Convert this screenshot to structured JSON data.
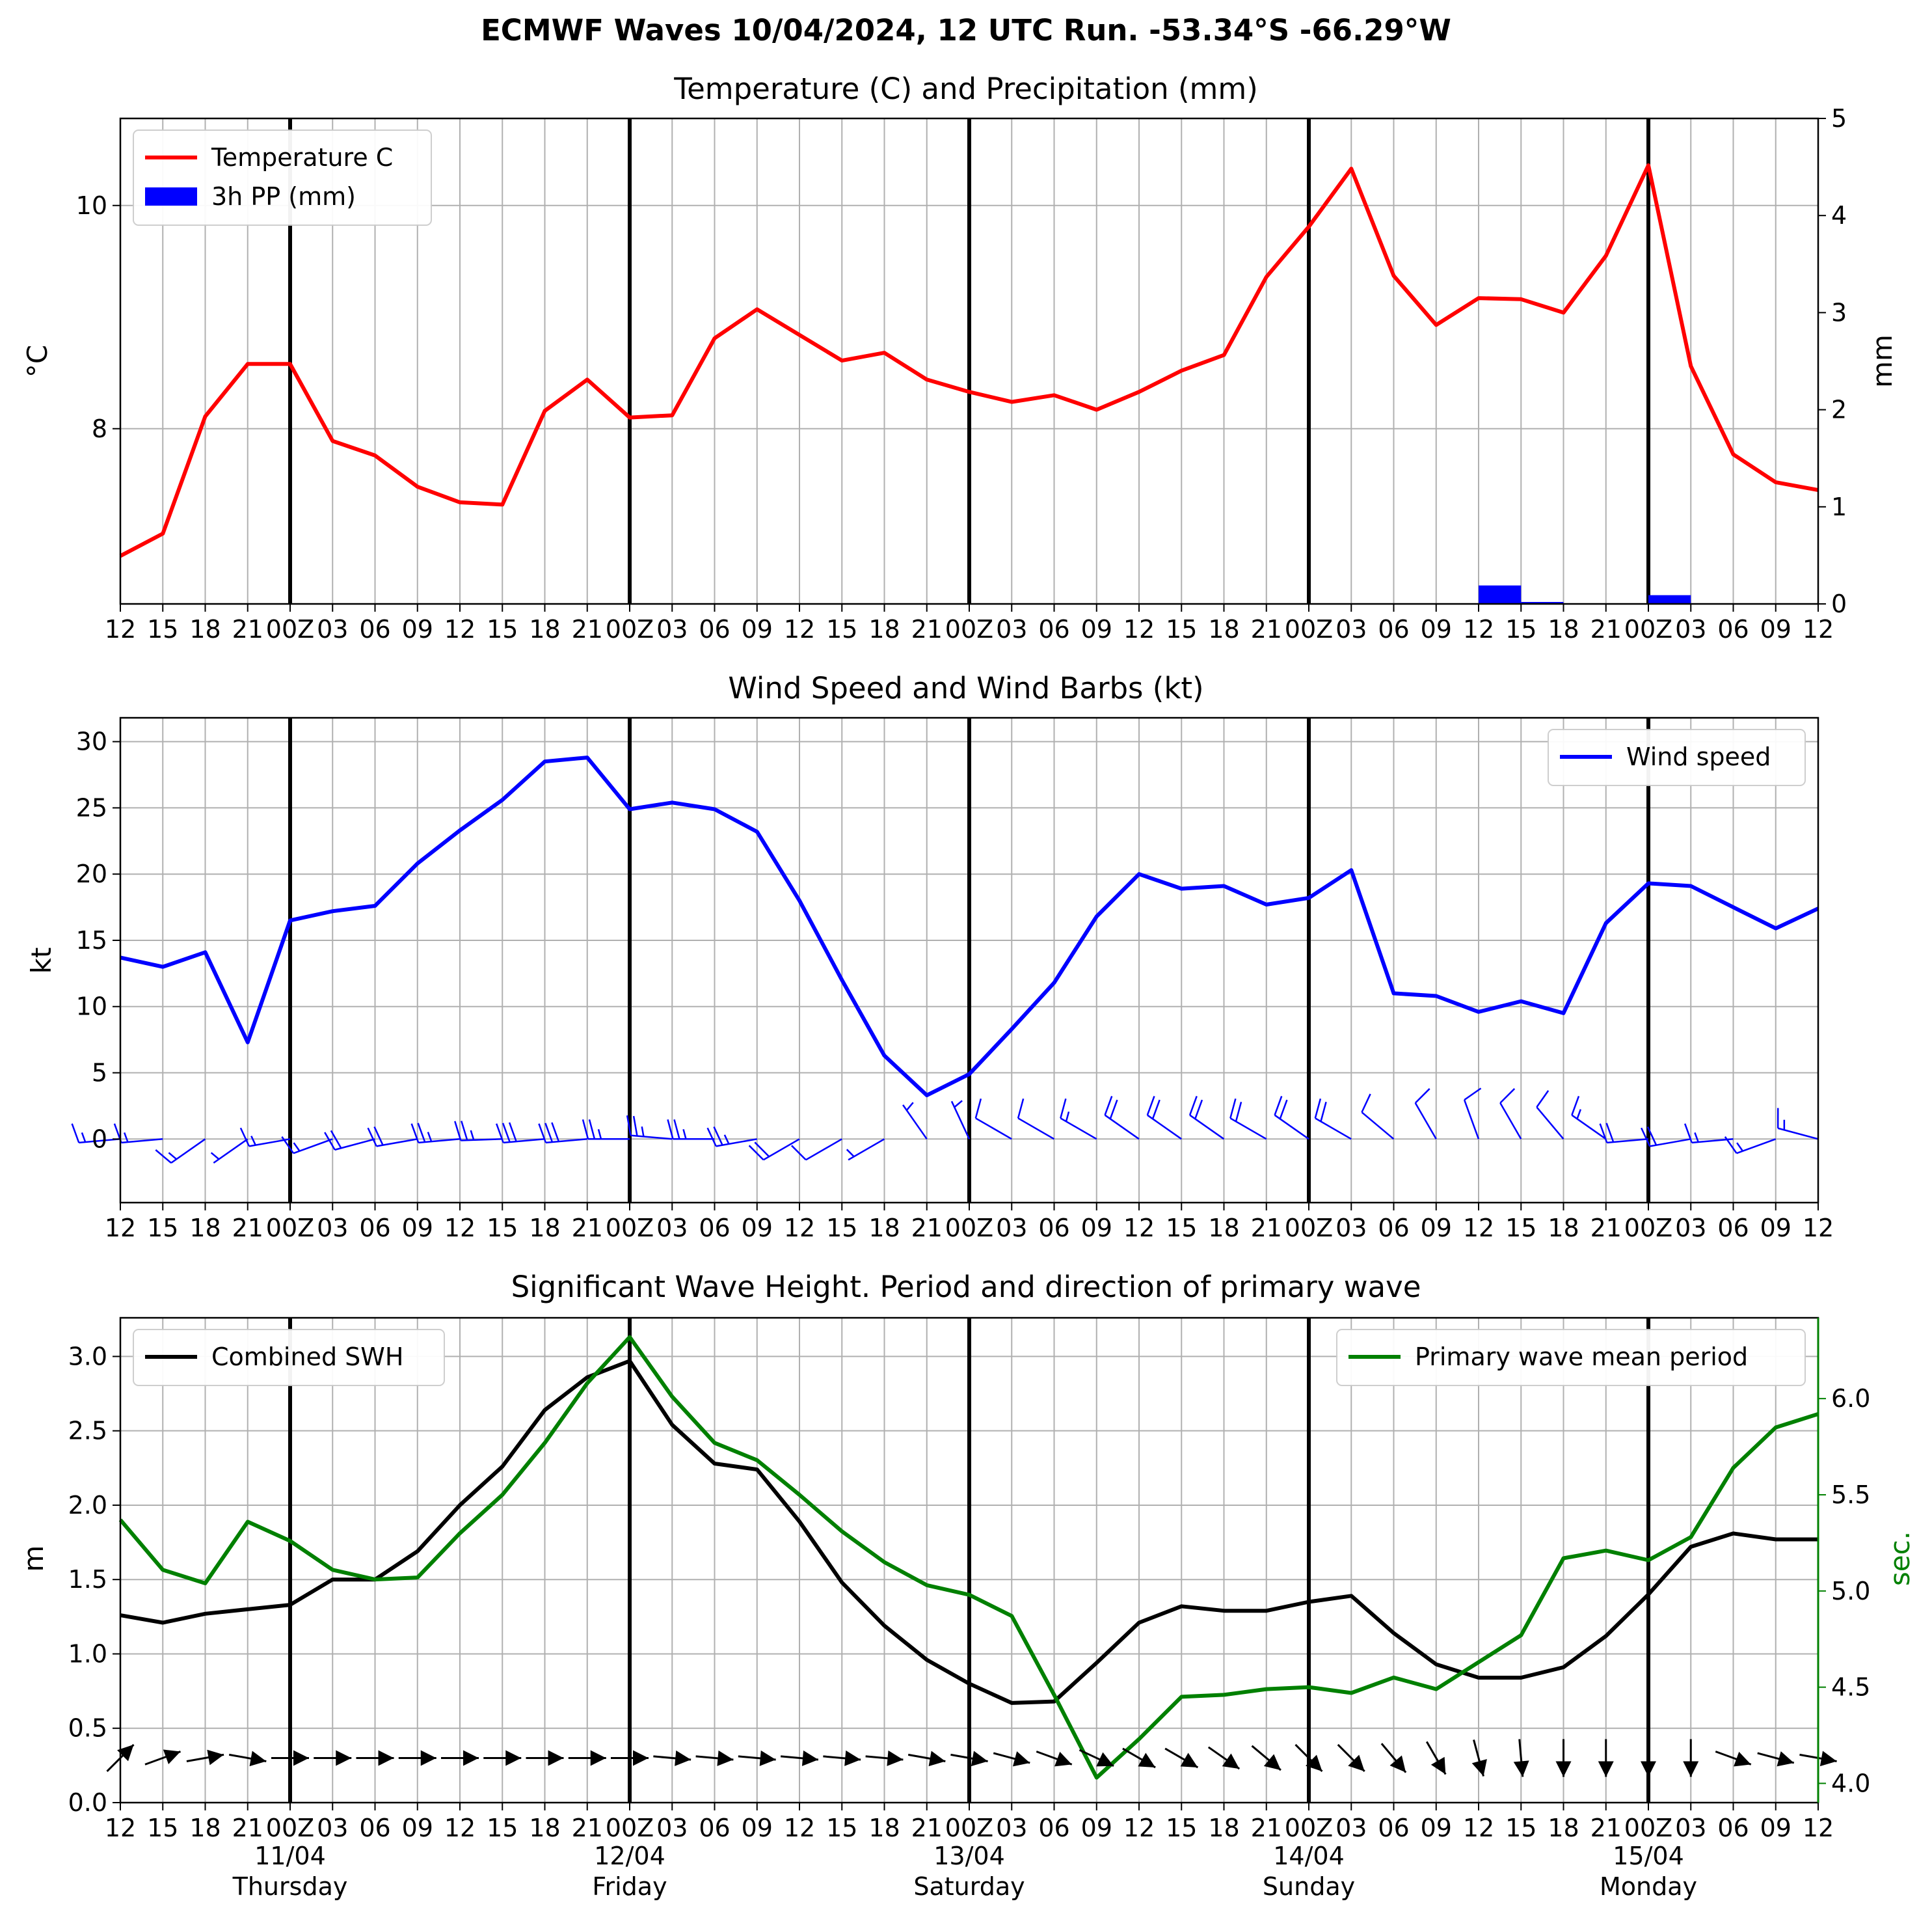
{
  "figure": {
    "suptitle": "ECMWF Waves 10/04/2024, 12 UTC Run. -53.34°S -66.29°W"
  },
  "colors": {
    "temperature": "#ff0000",
    "precip": "#0000ff",
    "wind": "#0000ff",
    "swh": "#000000",
    "period": "#008000",
    "grid": "#b0b0b0"
  },
  "x_axis": {
    "tick_labels": [
      "12",
      "15",
      "18",
      "21",
      "00Z",
      "03",
      "06",
      "09",
      "12",
      "15",
      "18",
      "21",
      "00Z",
      "03",
      "06",
      "09",
      "12",
      "15",
      "18",
      "21",
      "00Z",
      "03",
      "06",
      "09",
      "12",
      "15",
      "18",
      "21",
      "00Z",
      "03",
      "06",
      "09",
      "12",
      "15",
      "18",
      "21",
      "00Z",
      "03",
      "06",
      "09",
      "12"
    ],
    "days": [
      {
        "date": "11/04",
        "weekday": "Thursday"
      },
      {
        "date": "12/04",
        "weekday": "Friday"
      },
      {
        "date": "13/04",
        "weekday": "Saturday"
      },
      {
        "date": "14/04",
        "weekday": "Sunday"
      },
      {
        "date": "15/04",
        "weekday": "Monday"
      }
    ]
  },
  "chart_data": [
    {
      "type": "line",
      "title": "Temperature (C) and Precipitation (mm)",
      "ylabel": "°C",
      "ylabel_right": "mm",
      "ylim": [
        6.43,
        10.78
      ],
      "y_ticks": [
        8,
        10
      ],
      "ylim_right": [
        0,
        5
      ],
      "y_ticks_right": [
        0,
        1,
        2,
        3,
        4,
        5
      ],
      "legend": [
        "Temperature C",
        "3h PP (mm)"
      ],
      "legend_position": "upper left",
      "series": [
        {
          "name": "Temperature C",
          "values": [
            6.86,
            7.06,
            8.11,
            8.58,
            8.58,
            7.89,
            7.76,
            7.48,
            7.34,
            7.32,
            8.16,
            8.44,
            8.1,
            8.12,
            8.81,
            9.07,
            8.84,
            8.61,
            8.68,
            8.44,
            8.33,
            8.24,
            8.3,
            8.17,
            8.33,
            8.52,
            8.66,
            9.36,
            9.81,
            10.33,
            9.37,
            8.93,
            9.17,
            9.16,
            9.04,
            9.55,
            10.36,
            8.56,
            7.77,
            7.52,
            7.45
          ]
        },
        {
          "name": "3h PP (mm)",
          "type": "bar",
          "values": [
            0,
            0,
            0,
            0,
            0,
            0,
            0,
            0,
            0,
            0,
            0,
            0,
            0,
            0,
            0,
            0,
            0,
            0,
            0,
            0,
            0,
            0,
            0,
            0,
            0,
            0,
            0,
            0,
            0,
            0,
            0,
            0,
            0.19,
            0.02,
            0,
            0,
            0.09,
            0,
            0,
            0
          ]
        }
      ]
    },
    {
      "type": "line",
      "title": "Wind Speed and Wind Barbs (kt)",
      "ylabel": "kt",
      "ylim": [
        -4.8,
        31.8
      ],
      "y_ticks": [
        0,
        5,
        10,
        15,
        20,
        25,
        30
      ],
      "legend": [
        "Wind speed"
      ],
      "legend_position": "upper right",
      "series": [
        {
          "name": "Wind speed",
          "values": [
            13.7,
            13.0,
            14.1,
            7.3,
            16.5,
            17.2,
            17.6,
            20.8,
            23.3,
            25.6,
            28.5,
            28.8,
            24.9,
            25.4,
            24.9,
            23.2,
            18.0,
            12.0,
            6.3,
            3.3,
            4.9,
            8.3,
            11.8,
            16.8,
            20.0,
            18.9,
            19.1,
            17.7,
            18.2,
            20.3,
            11.0,
            10.8,
            9.6,
            10.4,
            9.5,
            16.3,
            19.3,
            19.1,
            17.5,
            15.9,
            17.4
          ]
        }
      ]
    },
    {
      "type": "line",
      "title": "Significant Wave Height. Period and direction of primary wave",
      "ylabel": "m",
      "ylabel_right": "sec.",
      "ylim": [
        0,
        3.26
      ],
      "y_ticks": [
        0.0,
        0.5,
        1.0,
        1.5,
        2.0,
        2.5,
        3.0
      ],
      "ylim_right": [
        3.9,
        6.42
      ],
      "y_ticks_right": [
        4.0,
        4.5,
        5.0,
        5.5,
        6.0
      ],
      "legend": [
        "Combined SWH",
        "Primary wave mean period"
      ],
      "series": [
        {
          "name": "Combined SWH",
          "values": [
            1.26,
            1.21,
            1.27,
            1.3,
            1.33,
            1.5,
            1.5,
            1.69,
            2.0,
            2.26,
            2.64,
            2.86,
            2.97,
            2.54,
            2.28,
            2.24,
            1.89,
            1.48,
            1.19,
            0.96,
            0.8,
            0.67,
            0.68,
            0.94,
            1.21,
            1.32,
            1.29,
            1.29,
            1.35,
            1.39,
            1.14,
            0.93,
            0.84,
            0.84,
            0.91,
            1.12,
            1.4,
            1.72,
            1.81,
            1.77,
            1.77
          ]
        },
        {
          "name": "Primary wave mean period",
          "values": [
            5.37,
            5.11,
            5.04,
            5.36,
            5.26,
            5.11,
            5.06,
            5.07,
            5.3,
            5.5,
            5.77,
            6.08,
            6.32,
            6.01,
            5.77,
            5.68,
            5.5,
            5.31,
            5.15,
            5.03,
            4.98,
            4.87,
            4.46,
            4.03,
            4.23,
            4.45,
            4.46,
            4.49,
            4.5,
            4.47,
            4.55,
            4.49,
            4.63,
            4.77,
            5.17,
            5.21,
            5.16,
            5.28,
            5.64,
            5.85,
            5.92
          ]
        },
        {
          "name": "Primary wave direction",
          "type": "arrows",
          "values": [
            225,
            250,
            260,
            280,
            270,
            270,
            270,
            270,
            270,
            270,
            270,
            270,
            270,
            275,
            275,
            275,
            275,
            275,
            275,
            280,
            280,
            285,
            290,
            295,
            300,
            300,
            305,
            310,
            315,
            315,
            320,
            330,
            345,
            355,
            0,
            0,
            0,
            0,
            290,
            285,
            280
          ]
        }
      ]
    }
  ],
  "wind_barbs": [
    {
      "speed": 14,
      "dir": 265
    },
    {
      "speed": 13,
      "dir": 265
    },
    {
      "speed": 14,
      "dir": 235
    },
    {
      "speed": 7,
      "dir": 235
    },
    {
      "speed": 17,
      "dir": 260
    },
    {
      "speed": 17,
      "dir": 250
    },
    {
      "speed": 18,
      "dir": 255
    },
    {
      "speed": 21,
      "dir": 260
    },
    {
      "speed": 23,
      "dir": 265
    },
    {
      "speed": 26,
      "dir": 268
    },
    {
      "speed": 28,
      "dir": 265
    },
    {
      "speed": 29,
      "dir": 265
    },
    {
      "speed": 25,
      "dir": 270
    },
    {
      "speed": 25,
      "dir": 275
    },
    {
      "speed": 25,
      "dir": 270
    },
    {
      "speed": 23,
      "dir": 260
    },
    {
      "speed": 18,
      "dir": 240
    },
    {
      "speed": 12,
      "dir": 240
    },
    {
      "speed": 6,
      "dir": 240
    },
    {
      "speed": 3,
      "dir": 325
    },
    {
      "speed": 5,
      "dir": 335
    },
    {
      "speed": 8,
      "dir": 300
    },
    {
      "speed": 12,
      "dir": 300
    },
    {
      "speed": 17,
      "dir": 300
    },
    {
      "speed": 20,
      "dir": 305
    },
    {
      "speed": 19,
      "dir": 305
    },
    {
      "speed": 19,
      "dir": 305
    },
    {
      "speed": 18,
      "dir": 300
    },
    {
      "speed": 18,
      "dir": 305
    },
    {
      "speed": 20,
      "dir": 300
    },
    {
      "speed": 11,
      "dir": 310
    },
    {
      "speed": 11,
      "dir": 330
    },
    {
      "speed": 10,
      "dir": 340
    },
    {
      "speed": 10,
      "dir": 330
    },
    {
      "speed": 10,
      "dir": 320
    },
    {
      "speed": 16,
      "dir": 305
    },
    {
      "speed": 19,
      "dir": 265
    },
    {
      "speed": 19,
      "dir": 260
    },
    {
      "speed": 17,
      "dir": 265
    },
    {
      "speed": 16,
      "dir": 250
    },
    {
      "speed": 17,
      "dir": 285
    }
  ]
}
